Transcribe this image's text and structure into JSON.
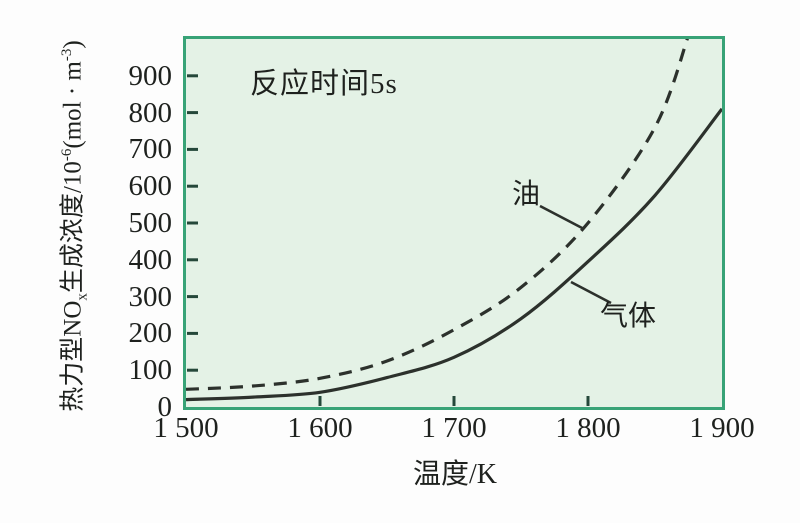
{
  "chart_data": {
    "type": "line",
    "annotation": "反应时间5s",
    "xlabel": "温度/K",
    "ylabel": "热力型NOx生成浓度/10-6(mol·m-3)",
    "ylabel_parts": [
      {
        "text": "热力型NO"
      },
      {
        "text": "x",
        "script": "sub"
      },
      {
        "text": "生成浓度/10"
      },
      {
        "text": "-6",
        "script": "sup"
      },
      {
        "text": "(mol · m"
      },
      {
        "text": "-3",
        "script": "sup"
      },
      {
        "text": ")"
      }
    ],
    "xlim": [
      1500,
      1900
    ],
    "ylim": [
      0,
      1000
    ],
    "grid": false,
    "x_ticks": [
      {
        "value": 1500,
        "label": "1 500"
      },
      {
        "value": 1600,
        "label": "1 600"
      },
      {
        "value": 1700,
        "label": "1 700"
      },
      {
        "value": 1800,
        "label": "1 800"
      },
      {
        "value": 1900,
        "label": "1 900"
      }
    ],
    "y_ticks": [
      {
        "value": 0,
        "label": "0"
      },
      {
        "value": 100,
        "label": "100"
      },
      {
        "value": 200,
        "label": "200"
      },
      {
        "value": 300,
        "label": "300"
      },
      {
        "value": 400,
        "label": "400"
      },
      {
        "value": 500,
        "label": "500"
      },
      {
        "value": 600,
        "label": "600"
      },
      {
        "value": 700,
        "label": "700"
      },
      {
        "value": 800,
        "label": "800"
      },
      {
        "value": 900,
        "label": "900"
      }
    ],
    "series": [
      {
        "name": "油",
        "style": "dashed",
        "points": [
          [
            1500,
            48
          ],
          [
            1550,
            57
          ],
          [
            1600,
            78
          ],
          [
            1650,
            125
          ],
          [
            1700,
            210
          ],
          [
            1750,
            325
          ],
          [
            1800,
            500
          ],
          [
            1850,
            760
          ],
          [
            1875,
            1010
          ]
        ]
      },
      {
        "name": "气体",
        "style": "solid",
        "points": [
          [
            1500,
            20
          ],
          [
            1550,
            27
          ],
          [
            1600,
            40
          ],
          [
            1650,
            80
          ],
          [
            1700,
            135
          ],
          [
            1750,
            240
          ],
          [
            1800,
            395
          ],
          [
            1850,
            575
          ],
          [
            1900,
            810
          ]
        ]
      }
    ],
    "colors": {
      "plot_background": "#e4f2e6",
      "plot_border": "#38a377",
      "curve": "#2c312c",
      "tick": "#25483a",
      "text": "#1e211e"
    }
  }
}
